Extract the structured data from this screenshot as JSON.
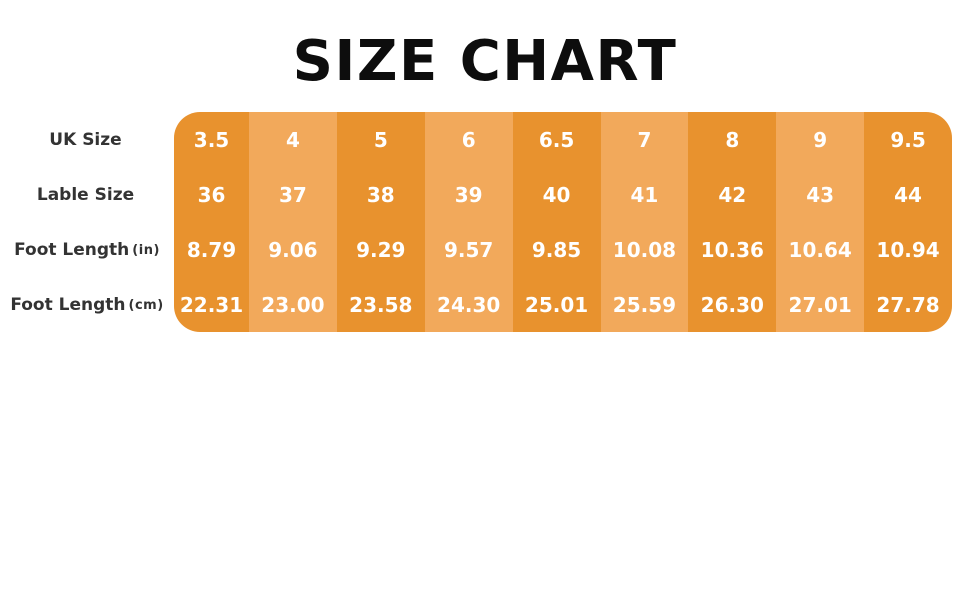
{
  "title": "SIZE CHART",
  "colors": {
    "background": "#FFFFFF",
    "title_text": "#0D0D0D",
    "label_text": "#333333",
    "cell_text": "#FFFFFF",
    "column_dark": "#E8922E",
    "column_light": "#F2A95B"
  },
  "chart_data": {
    "type": "table",
    "title": "SIZE CHART",
    "layout": "4 rows x 9 columns, alternating dark/light orange column stripes, rounded outer corners, row labels in left gutter",
    "rows": [
      {
        "label": "UK Size",
        "unit": "",
        "values": [
          "3.5",
          "4",
          "5",
          "6",
          "6.5",
          "7",
          "8",
          "9",
          "9.5"
        ]
      },
      {
        "label": "Lable Size",
        "unit": "",
        "values": [
          "36",
          "37",
          "38",
          "39",
          "40",
          "41",
          "42",
          "43",
          "44"
        ]
      },
      {
        "label": "Foot Length",
        "unit": "(in)",
        "values": [
          "8.79",
          "9.06",
          "9.29",
          "9.57",
          "9.85",
          "10.08",
          "10.36",
          "10.64",
          "10.94"
        ]
      },
      {
        "label": "Foot Length",
        "unit": "(cm)",
        "values": [
          "22.31",
          "23.00",
          "23.58",
          "24.30",
          "25.01",
          "25.59",
          "26.30",
          "27.01",
          "27.78"
        ]
      }
    ]
  }
}
